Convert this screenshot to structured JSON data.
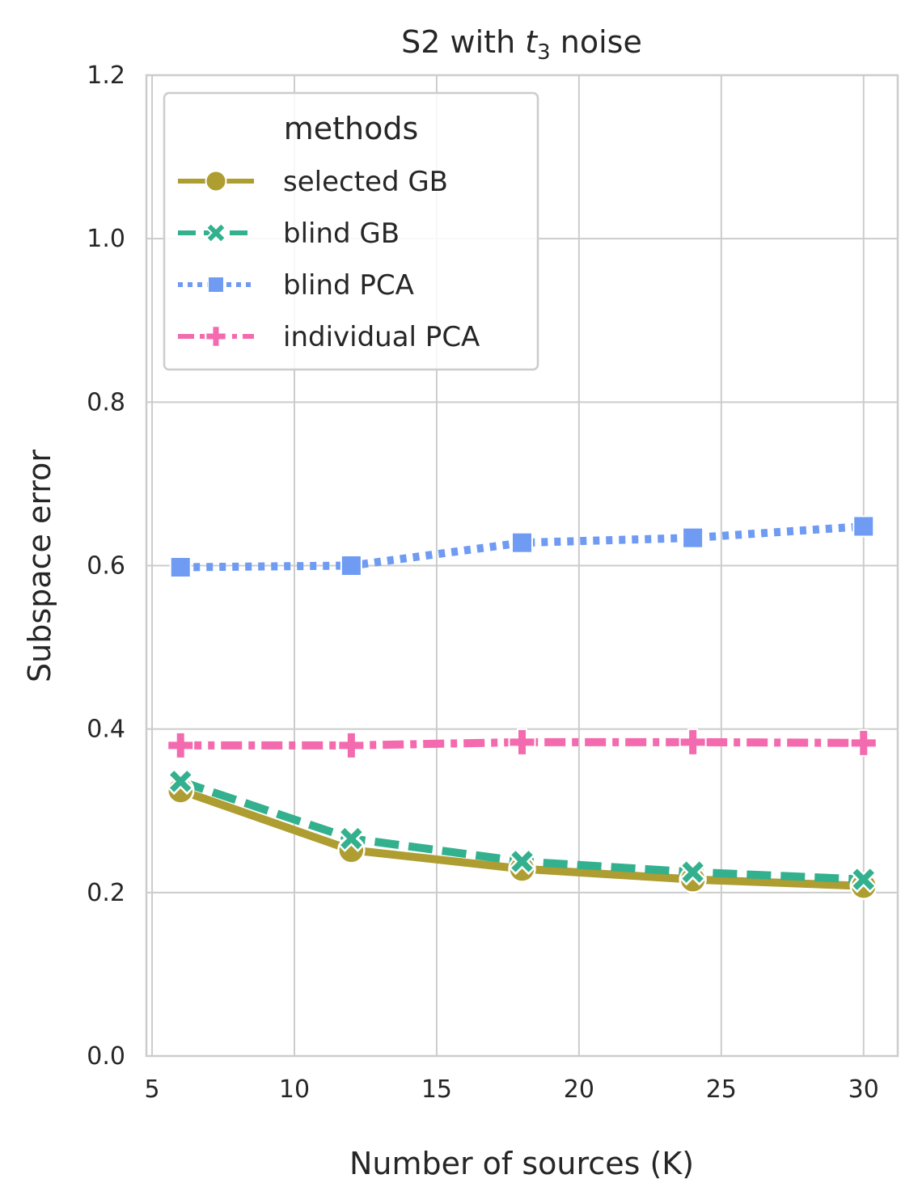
{
  "chart_data": {
    "type": "line",
    "title": "S2 with ",
    "title_math_var": "t",
    "title_math_sub": "3",
    "title_suffix": " noise",
    "xlabel": "Number of sources (K)",
    "ylabel": "Subspace error",
    "xlim": [
      4.8,
      31.2
    ],
    "ylim": [
      0,
      1.2
    ],
    "xticks": [
      5,
      10,
      15,
      20,
      25,
      30
    ],
    "xtick_labels": [
      "5",
      "10",
      "15",
      "20",
      "25",
      "30"
    ],
    "yticks": [
      0.0,
      0.2,
      0.4,
      0.6,
      0.8,
      1.0,
      1.2
    ],
    "ytick_labels": [
      "0.0",
      "0.2",
      "0.4",
      "0.6",
      "0.8",
      "1.0",
      "1.2"
    ],
    "grid": true,
    "legend": {
      "title": "methods",
      "placement": "top-left"
    },
    "x": [
      6,
      12,
      18,
      24,
      30
    ],
    "series": [
      {
        "name": "selected GB",
        "values": [
          0.325,
          0.252,
          0.229,
          0.216,
          0.208
        ],
        "color": "#ae9d31",
        "dash": "solid",
        "marker": "circle"
      },
      {
        "name": "blind GB",
        "values": [
          0.336,
          0.266,
          0.238,
          0.225,
          0.216
        ],
        "color": "#33b08e",
        "dash": "dashed",
        "marker": "x"
      },
      {
        "name": "blind PCA",
        "values": [
          0.598,
          0.6,
          0.628,
          0.634,
          0.648
        ],
        "color": "#6f9bf2",
        "dash": "dotted",
        "marker": "square"
      },
      {
        "name": "individual PCA",
        "values": [
          0.38,
          0.38,
          0.384,
          0.384,
          0.383
        ],
        "color": "#f36bae",
        "dash": "dashdot",
        "marker": "plus"
      }
    ]
  }
}
